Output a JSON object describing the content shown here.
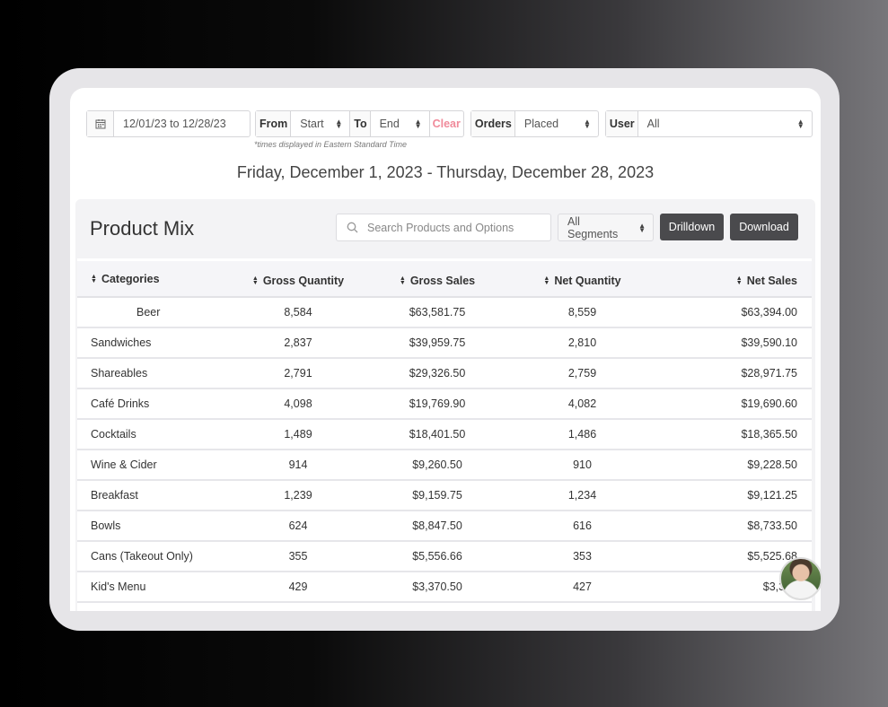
{
  "filters": {
    "date_range": "12/01/23 to 12/28/23",
    "from_label": "From",
    "from_value": "Start",
    "to_label": "To",
    "to_value": "End",
    "clear_label": "Clear",
    "orders_label": "Orders",
    "orders_value": "Placed",
    "user_label": "User",
    "user_value": "All",
    "note": "*times displayed in Eastern Standard Time"
  },
  "range_title": "Friday, December 1, 2023 - Thursday, December 28, 2023",
  "panel": {
    "title": "Product Mix",
    "search_placeholder": "Search Products and Options",
    "segments_value": "All Segments",
    "drilldown_label": "Drilldown",
    "download_label": "Download"
  },
  "table": {
    "headers": [
      "Categories",
      "Gross Quantity",
      "Gross Sales",
      "Net Quantity",
      "Net Sales"
    ],
    "rows": [
      {
        "category": "Beer",
        "gross_qty": "8,584",
        "gross_sales": "$63,581.75",
        "net_qty": "8,559",
        "net_sales": "$63,394.00"
      },
      {
        "category": "Sandwiches",
        "gross_qty": "2,837",
        "gross_sales": "$39,959.75",
        "net_qty": "2,810",
        "net_sales": "$39,590.10"
      },
      {
        "category": "Shareables",
        "gross_qty": "2,791",
        "gross_sales": "$29,326.50",
        "net_qty": "2,759",
        "net_sales": "$28,971.75"
      },
      {
        "category": "Café Drinks",
        "gross_qty": "4,098",
        "gross_sales": "$19,769.90",
        "net_qty": "4,082",
        "net_sales": "$19,690.60"
      },
      {
        "category": "Cocktails",
        "gross_qty": "1,489",
        "gross_sales": "$18,401.50",
        "net_qty": "1,486",
        "net_sales": "$18,365.50"
      },
      {
        "category": "Wine & Cider",
        "gross_qty": "914",
        "gross_sales": "$9,260.50",
        "net_qty": "910",
        "net_sales": "$9,228.50"
      },
      {
        "category": "Breakfast",
        "gross_qty": "1,239",
        "gross_sales": "$9,159.75",
        "net_qty": "1,234",
        "net_sales": "$9,121.25"
      },
      {
        "category": "Bowls",
        "gross_qty": "624",
        "gross_sales": "$8,847.50",
        "net_qty": "616",
        "net_sales": "$8,733.50"
      },
      {
        "category": "Cans (Takeout Only)",
        "gross_qty": "355",
        "gross_sales": "$5,556.66",
        "net_qty": "353",
        "net_sales": "$5,525.68"
      },
      {
        "category": "Kid's Menu",
        "gross_qty": "429",
        "gross_sales": "$3,370.50",
        "net_qty": "427",
        "net_sales": "$3,349"
      }
    ]
  }
}
